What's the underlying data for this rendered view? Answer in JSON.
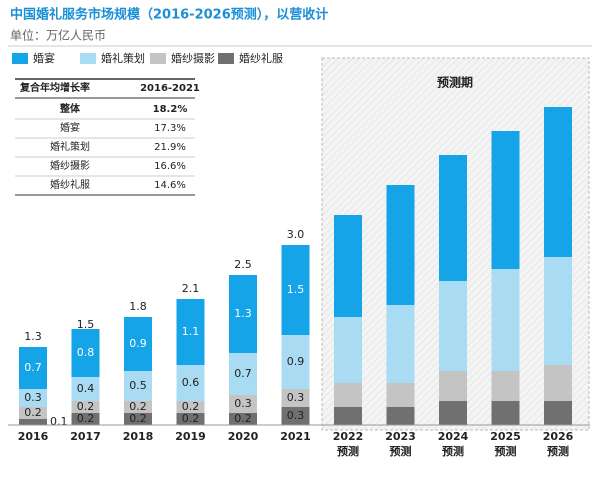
{
  "chart_data": {
    "type": "stacked-bar",
    "title": "中国婚礼服务市场规模（2016-2026预测），以营收计",
    "subtitle": "单位：万亿人民币",
    "forecast_label": "预测期",
    "categories": [
      "2016",
      "2017",
      "2018",
      "2019",
      "2020",
      "2021",
      "2022",
      "2023",
      "2024",
      "2025",
      "2026"
    ],
    "category_notes": [
      null,
      null,
      null,
      null,
      null,
      null,
      "预测",
      "预测",
      "预测",
      "预测",
      "预测"
    ],
    "ylim": [
      0,
      5.5
    ],
    "series": [
      {
        "name": "婚纱礼服",
        "color": "#707070",
        "values": [
          0.1,
          0.2,
          0.2,
          0.2,
          0.2,
          0.3,
          0.3,
          0.3,
          0.4,
          0.4,
          0.4
        ],
        "value_labels": [
          "0.1",
          "0.2",
          "0.2",
          "0.2",
          "0.2",
          "0.3",
          null,
          null,
          null,
          null,
          null
        ]
      },
      {
        "name": "婚纱摄影",
        "color": "#c4c4c4",
        "values": [
          0.2,
          0.2,
          0.2,
          0.2,
          0.3,
          0.3,
          0.4,
          0.4,
          0.5,
          0.5,
          0.6
        ],
        "value_labels": [
          "0.2",
          "0.2",
          "0.2",
          "0.2",
          "0.3",
          "0.3",
          null,
          null,
          null,
          null,
          null
        ]
      },
      {
        "name": "婚礼策划",
        "color": "#a9dcf3",
        "values": [
          0.3,
          0.4,
          0.5,
          0.6,
          0.7,
          0.9,
          1.1,
          1.3,
          1.5,
          1.7,
          1.8
        ],
        "value_labels": [
          "0.3",
          "0.4",
          "0.5",
          "0.6",
          "0.7",
          "0.9",
          null,
          null,
          null,
          null,
          null
        ]
      },
      {
        "name": "婚宴",
        "color": "#15a4e8",
        "values": [
          0.7,
          0.8,
          0.9,
          1.1,
          1.3,
          1.5,
          1.7,
          2.0,
          2.1,
          2.3,
          2.5
        ],
        "value_labels": [
          "0.7",
          "0.8",
          "0.9",
          "1.1",
          "1.3",
          "1.5",
          null,
          null,
          null,
          null,
          null
        ]
      }
    ],
    "totals": [
      1.3,
      1.5,
      1.8,
      2.1,
      2.5,
      3,
      null,
      null,
      null,
      null,
      null
    ],
    "total_labels": [
      "1.3",
      "1.5",
      "1.8",
      "2.1",
      "2.5",
      "3.0",
      null,
      null,
      null,
      null,
      null
    ],
    "legend_order": [
      3,
      2,
      1,
      0
    ]
  },
  "cagr_table": {
    "header": [
      "复合年均增长率",
      "2016-2021"
    ],
    "rows": [
      [
        "整体",
        "18.2%"
      ],
      [
        "婚宴",
        "17.3%"
      ],
      [
        "婚礼策划",
        "21.9%"
      ],
      [
        "婚纱摄影",
        "16.6%"
      ],
      [
        "婚纱礼服",
        "14.6%"
      ]
    ]
  }
}
